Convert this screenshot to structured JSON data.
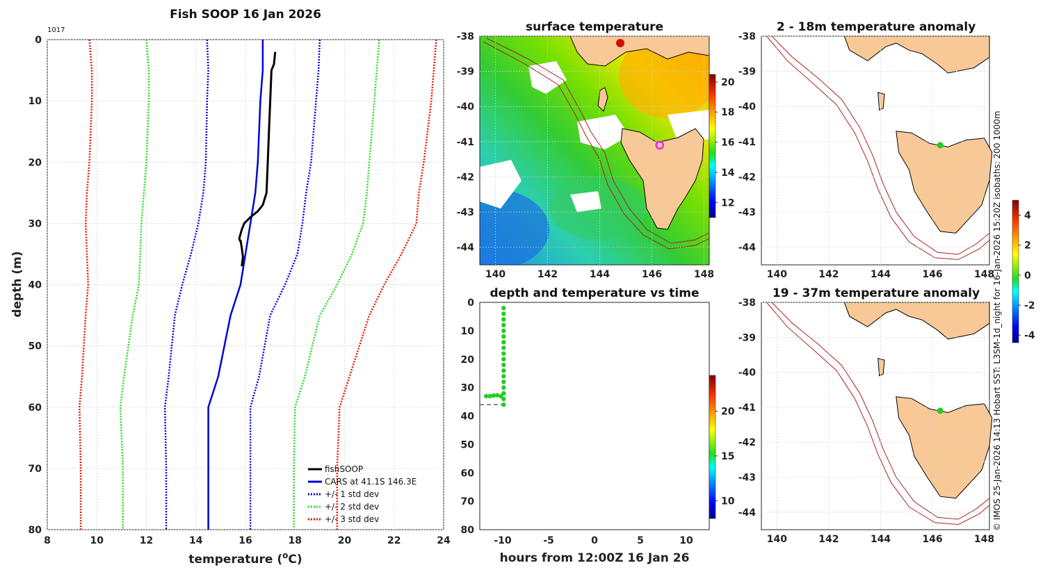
{
  "figure": {
    "title": "Fish SOOP 16 Jan 2026",
    "profile_label": "1017",
    "credit": "© IMOS 25-Jan-2026 14:13 Hobart SST: L3SM-1d_night for 16-Jan-2026 15:20Z isobaths: 200  1000m"
  },
  "colors": {
    "fishsoop": "#000000",
    "cars": "#0000dd",
    "std1": "#0000dd",
    "std2": "#22dd22",
    "std3": "#ee1100",
    "land": "#f8c896",
    "isobath": "#aa2222",
    "sample_point": "#22cc22",
    "dot_highlight": "#ee22ee"
  },
  "chart_data": [
    {
      "type": "line",
      "name": "profile",
      "title": "Fish SOOP 16 Jan 2026",
      "xlabel": "temperature (°C)",
      "ylabel": "depth (m)",
      "xlim": [
        8,
        24
      ],
      "ylim": [
        80,
        0
      ],
      "x_ticks": [
        8,
        10,
        12,
        14,
        16,
        18,
        20,
        22,
        24
      ],
      "y_ticks": [
        0,
        10,
        20,
        30,
        40,
        50,
        60,
        70,
        80
      ],
      "grid": true,
      "legend_position": "bottom-right",
      "series": [
        {
          "name": "fishSOOP",
          "style": "solid",
          "color_key": "fishsoop",
          "x": [
            17.2,
            17.15,
            17.05,
            17.0,
            16.95,
            16.9,
            16.85,
            16.7,
            16.5,
            16.2,
            15.95,
            15.85,
            15.75,
            15.8,
            15.8,
            15.85,
            15.9,
            15.85
          ],
          "y": [
            2,
            4,
            5,
            10,
            15,
            20,
            25,
            27,
            28,
            29,
            30,
            31,
            32.5,
            33,
            32.7,
            34,
            35.5,
            37
          ]
        },
        {
          "name": "CARS at 41.1S 146.3E",
          "style": "solid",
          "color_key": "cars",
          "x": [
            16.7,
            16.7,
            16.6,
            16.5,
            16.4,
            16.2,
            16.0,
            15.8,
            15.4,
            14.9,
            14.5,
            14.5,
            14.5
          ],
          "y": [
            0,
            5,
            10,
            20,
            25,
            30,
            35,
            40,
            45,
            55,
            60,
            70,
            80
          ]
        },
        {
          "name": "+/- 1 std dev",
          "style": "dotted",
          "color_key": "std1",
          "x": [
            14.45,
            14.5,
            14.45,
            14.4,
            14.3,
            14.1,
            13.8,
            13.45,
            13.15,
            12.9,
            12.75,
            12.8,
            12.8
          ],
          "y": [
            0,
            5,
            10,
            20,
            25,
            30,
            35,
            40,
            45,
            55,
            60,
            70,
            80
          ]
        },
        {
          "name": "+/- 1 std dev",
          "style": "dotted",
          "color_key": "std1",
          "x": [
            19.0,
            18.95,
            18.85,
            18.65,
            18.45,
            18.3,
            18.1,
            17.6,
            17.0,
            16.55,
            16.2,
            16.2,
            16.2
          ],
          "y": [
            0,
            5,
            10,
            20,
            25,
            30,
            35,
            40,
            45,
            55,
            60,
            70,
            80
          ]
        },
        {
          "name": "+/- 2 std dev",
          "style": "dotted",
          "color_key": "std2",
          "x": [
            12.0,
            12.1,
            12.1,
            12.0,
            11.9,
            11.8,
            11.75,
            11.7,
            11.45,
            11.1,
            10.95,
            11.05,
            11.05
          ],
          "y": [
            0,
            5,
            10,
            20,
            25,
            30,
            35,
            40,
            45,
            55,
            60,
            70,
            80
          ]
        },
        {
          "name": "+/- 2 std dev",
          "style": "dotted",
          "color_key": "std2",
          "x": [
            21.4,
            21.3,
            21.2,
            21.0,
            20.9,
            20.75,
            20.3,
            19.7,
            19.0,
            18.4,
            18.0,
            17.95,
            17.95
          ],
          "y": [
            0,
            5,
            10,
            20,
            25,
            30,
            35,
            40,
            45,
            55,
            60,
            70,
            80
          ]
        },
        {
          "name": "+/- 3 std dev",
          "style": "dotted",
          "color_key": "std3",
          "x": [
            9.7,
            9.8,
            9.8,
            9.7,
            9.6,
            9.55,
            9.6,
            9.65,
            9.55,
            9.4,
            9.3,
            9.35,
            9.35
          ],
          "y": [
            0,
            5,
            10,
            20,
            25,
            30,
            35,
            40,
            45,
            55,
            60,
            70,
            80
          ]
        },
        {
          "name": "+/- 3 std dev",
          "style": "dotted",
          "color_key": "std3",
          "x": [
            23.7,
            23.6,
            23.5,
            23.2,
            23.0,
            22.9,
            22.3,
            21.6,
            21.0,
            20.2,
            19.8,
            19.7,
            19.7
          ],
          "y": [
            0,
            5,
            10,
            20,
            25,
            30,
            35,
            40,
            45,
            55,
            60,
            70,
            80
          ]
        }
      ],
      "legend": [
        "fishSOOP",
        "CARS at 41.1S 146.3E",
        "+/- 1 std dev",
        "+/- 2 std dev",
        "+/- 3 std dev"
      ]
    },
    {
      "type": "heatmap",
      "name": "sst_map",
      "title": "surface temperature",
      "xlim": [
        139.4,
        148.2
      ],
      "ylim": [
        -44.5,
        -38
      ],
      "x_ticks": [
        140,
        142,
        144,
        146,
        148
      ],
      "y_ticks": [
        -38,
        -39,
        -40,
        -41,
        -42,
        -43,
        -44
      ],
      "colorbar": {
        "range": [
          11,
          20.5
        ],
        "ticks": [
          12,
          14,
          16,
          18,
          20
        ]
      },
      "marker": {
        "lon": 146.3,
        "lat": -41.1
      }
    },
    {
      "type": "scatter",
      "name": "depth_time",
      "title": "depth and temperature vs time",
      "xlabel": "hours from 12:00Z 16 Jan 26",
      "xlim": [
        -12.5,
        12.5
      ],
      "ylim": [
        80,
        0
      ],
      "x_ticks": [
        -10,
        -5,
        0,
        5,
        10
      ],
      "y_ticks": [
        0,
        10,
        20,
        30,
        40,
        50,
        60,
        70,
        80
      ],
      "bottom_depth": 36,
      "colorbar": {
        "range": [
          8,
          24
        ],
        "ticks": [
          10,
          15,
          20
        ]
      },
      "points": [
        {
          "x": -9.9,
          "y": 2
        },
        {
          "x": -9.9,
          "y": 4
        },
        {
          "x": -9.9,
          "y": 6
        },
        {
          "x": -9.9,
          "y": 8
        },
        {
          "x": -9.9,
          "y": 10
        },
        {
          "x": -9.9,
          "y": 12
        },
        {
          "x": -9.9,
          "y": 14
        },
        {
          "x": -9.9,
          "y": 16
        },
        {
          "x": -9.9,
          "y": 18
        },
        {
          "x": -9.9,
          "y": 20
        },
        {
          "x": -9.9,
          "y": 22
        },
        {
          "x": -9.9,
          "y": 24
        },
        {
          "x": -9.9,
          "y": 26
        },
        {
          "x": -9.9,
          "y": 28
        },
        {
          "x": -9.9,
          "y": 30
        },
        {
          "x": -9.9,
          "y": 32
        },
        {
          "x": -9.9,
          "y": 34
        },
        {
          "x": -9.9,
          "y": 36
        },
        {
          "x": -11.8,
          "y": 33
        },
        {
          "x": -11.4,
          "y": 33
        },
        {
          "x": -11.0,
          "y": 32.8
        },
        {
          "x": -10.6,
          "y": 32.7
        },
        {
          "x": -10.2,
          "y": 33
        }
      ]
    },
    {
      "type": "heatmap",
      "name": "anomaly_shallow",
      "title": "2 - 18m temperature anomaly",
      "xlim": [
        139.4,
        148.2
      ],
      "ylim": [
        -44.5,
        -38
      ],
      "x_ticks": [
        140,
        142,
        144,
        146,
        148
      ],
      "y_ticks": [
        -38,
        -39,
        -40,
        -41,
        -42,
        -43,
        -44
      ],
      "colorbar": {
        "range": [
          -4.5,
          5
        ],
        "ticks": [
          -4,
          -2,
          0,
          2,
          4
        ]
      },
      "marker": {
        "lon": 146.3,
        "lat": -41.1
      }
    },
    {
      "type": "heatmap",
      "name": "anomaly_deep",
      "title": "19 - 37m temperature anomaly",
      "xlim": [
        139.4,
        148.2
      ],
      "ylim": [
        -44.5,
        -38
      ],
      "x_ticks": [
        140,
        142,
        144,
        146,
        148
      ],
      "y_ticks": [
        -38,
        -39,
        -40,
        -41,
        -42,
        -43,
        -44
      ],
      "marker": {
        "lon": 146.3,
        "lat": -41.1
      }
    }
  ]
}
